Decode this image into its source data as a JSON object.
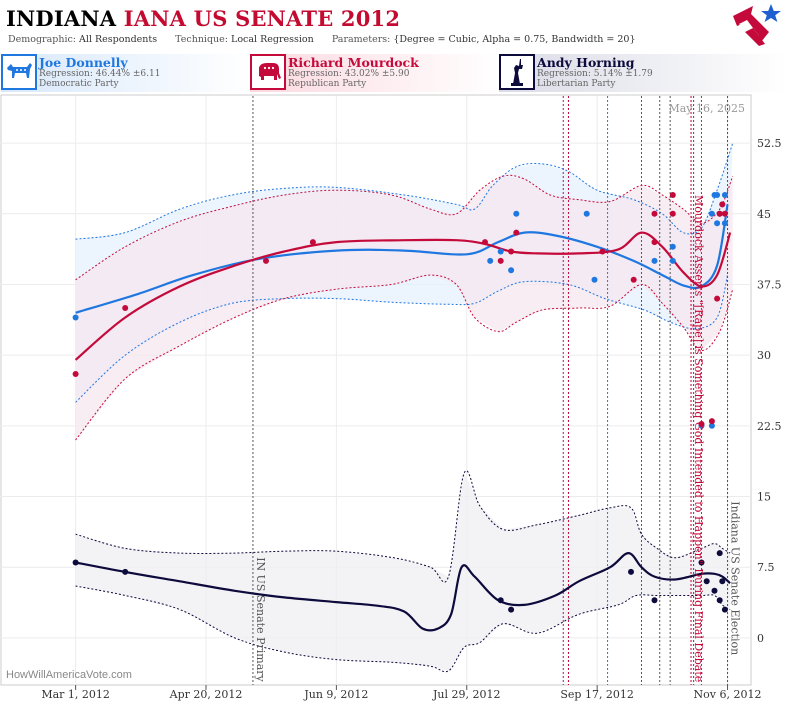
{
  "header": {
    "title_state": "INDIANA",
    "title_rest": "IANA US SENATE 2012",
    "demographic_label": "Demographic:",
    "demographic_value": "All Respondents",
    "technique_label": "Technique:",
    "technique_value": "Local Regression",
    "parameters_label": "Parameters:",
    "parameters_value": "{Degree = Cubic, Alpha = 0.75, Bandwidth = 20}"
  },
  "candidates": [
    {
      "name": "Joe Donnelly",
      "regression": "Regression: 46.44% ±6.11",
      "party": "Democratic Party",
      "color": "#1f77e0",
      "icon": "donkey-icon"
    },
    {
      "name": "Richard Mourdock",
      "regression": "Regression: 43.02% ±5.90",
      "party": "Republican Party",
      "color": "#c40a3a",
      "icon": "elephant-icon"
    },
    {
      "name": "Andy Horning",
      "regression": "Regression: 5.14% ±1.79",
      "party": "Libertarian Party",
      "color": "#0d0a3c",
      "icon": "liberty-statue-icon"
    }
  ],
  "chart_data": {
    "type": "scatter",
    "date_stamp": "May 16, 2025",
    "watermark": "HowWillAmericaVote.com",
    "ylim": [
      -5,
      57.5
    ],
    "y_ticks": [
      0,
      7.5,
      15,
      22.5,
      30,
      37.5,
      45,
      52.5
    ],
    "x_range": [
      "2012-02-01",
      "2012-11-15"
    ],
    "x_ticks": [
      {
        "date": "2012-03-01",
        "label": "Mar 1, 2012"
      },
      {
        "date": "2012-04-20",
        "label": "Apr 20, 2012"
      },
      {
        "date": "2012-06-09",
        "label": "Jun 9, 2012"
      },
      {
        "date": "2012-07-29",
        "label": "Jul 29, 2012"
      },
      {
        "date": "2012-09-17",
        "label": "Sep 17, 2012"
      },
      {
        "date": "2012-11-06",
        "label": "Nov 6, 2012"
      }
    ],
    "annotations": [
      {
        "date": "2012-05-08",
        "label": "IN US Senate Primary",
        "color": "#555555"
      },
      {
        "date": "2012-10-23",
        "label": "Mourdock Asserts \"[Rape] is Something God Intended to Happen\" During Final Debate",
        "color": "#c40a3a"
      },
      {
        "date": "2012-11-06",
        "label": "Indiana US Senate Election",
        "color": "#555555"
      }
    ],
    "event_lines": [
      {
        "date": "2012-09-04",
        "color": "#8a1a8a"
      },
      {
        "date": "2012-09-06",
        "color": "#c40a3a"
      },
      {
        "date": "2012-09-21",
        "color": "#1f77e0"
      },
      {
        "date": "2012-10-04",
        "color": "#555555"
      },
      {
        "date": "2012-10-11",
        "color": "#555555"
      },
      {
        "date": "2012-10-15",
        "color": "#555555"
      },
      {
        "date": "2012-10-23",
        "color": "#c40a3a"
      },
      {
        "date": "2012-10-24",
        "color": "#8a1a8a"
      },
      {
        "date": "2012-10-27",
        "color": "#555555"
      },
      {
        "date": "2012-11-06",
        "color": "#555555"
      }
    ],
    "series": [
      {
        "name": "Joe Donnelly",
        "color": "#1f77e0",
        "fill": "#e6f0fc",
        "line": [
          [
            "2012-03-01",
            34.5
          ],
          [
            "2012-03-25",
            36.5
          ],
          [
            "2012-04-15",
            38.5
          ],
          [
            "2012-05-10",
            40.2
          ],
          [
            "2012-06-09",
            41.1
          ],
          [
            "2012-07-05",
            41.1
          ],
          [
            "2012-07-29",
            40.7
          ],
          [
            "2012-08-10",
            42.0
          ],
          [
            "2012-08-20",
            43.0
          ],
          [
            "2012-09-01",
            42.7
          ],
          [
            "2012-09-17",
            41.5
          ],
          [
            "2012-10-01",
            40.0
          ],
          [
            "2012-10-12",
            38.5
          ],
          [
            "2012-10-20",
            37.4
          ],
          [
            "2012-10-27",
            37.3
          ],
          [
            "2012-11-02",
            39.5
          ],
          [
            "2012-11-06",
            46.0
          ]
        ],
        "upper": [
          [
            "2012-03-01",
            42.3
          ],
          [
            "2012-03-20",
            43.0
          ],
          [
            "2012-04-10",
            45.5
          ],
          [
            "2012-04-30",
            47.0
          ],
          [
            "2012-05-20",
            47.7
          ],
          [
            "2012-06-09",
            47.8
          ],
          [
            "2012-07-05",
            47.0
          ],
          [
            "2012-07-25",
            46.0
          ],
          [
            "2012-08-01",
            45.5
          ],
          [
            "2012-08-08",
            48.0
          ],
          [
            "2012-08-17",
            50.0
          ],
          [
            "2012-08-27",
            50.3
          ],
          [
            "2012-09-06",
            49.5
          ],
          [
            "2012-09-17",
            47.5
          ],
          [
            "2012-10-01",
            46.5
          ],
          [
            "2012-10-12",
            45.0
          ],
          [
            "2012-10-20",
            43.0
          ],
          [
            "2012-10-27",
            43.5
          ],
          [
            "2012-11-02",
            47.5
          ],
          [
            "2012-11-08",
            52.5
          ]
        ],
        "lower": [
          [
            "2012-03-01",
            25.0
          ],
          [
            "2012-03-20",
            30.0
          ],
          [
            "2012-04-10",
            33.5
          ],
          [
            "2012-04-30",
            35.5
          ],
          [
            "2012-05-20",
            36.0
          ],
          [
            "2012-06-09",
            36.0
          ],
          [
            "2012-07-01",
            35.6
          ],
          [
            "2012-07-22",
            35.4
          ],
          [
            "2012-08-01",
            35.5
          ],
          [
            "2012-08-10",
            36.8
          ],
          [
            "2012-08-20",
            37.8
          ],
          [
            "2012-09-06",
            37.5
          ],
          [
            "2012-09-20",
            36.0
          ],
          [
            "2012-10-05",
            34.8
          ],
          [
            "2012-10-15",
            33.5
          ],
          [
            "2012-10-25",
            32.8
          ],
          [
            "2012-11-02",
            34.0
          ],
          [
            "2012-11-06",
            38.5
          ]
        ],
        "points": [
          [
            "2012-03-01",
            34.0
          ],
          [
            "2012-08-07",
            40.0
          ],
          [
            "2012-08-11",
            41.0
          ],
          [
            "2012-08-15",
            39.0
          ],
          [
            "2012-08-17",
            45.0
          ],
          [
            "2012-09-13",
            45.0
          ],
          [
            "2012-09-16",
            38.0
          ],
          [
            "2012-10-09",
            40.0
          ],
          [
            "2012-10-16",
            41.5
          ],
          [
            "2012-10-16",
            40.0
          ],
          [
            "2012-10-27",
            22.5
          ],
          [
            "2012-10-31",
            45.0
          ],
          [
            "2012-11-01",
            47.0
          ],
          [
            "2012-11-02",
            47.0
          ],
          [
            "2012-11-02",
            44.0
          ],
          [
            "2012-11-03",
            45.0
          ],
          [
            "2012-11-04",
            46.0
          ],
          [
            "2012-11-05",
            44.0
          ],
          [
            "2012-11-05",
            47.0
          ],
          [
            "2012-10-31",
            22.5
          ]
        ]
      },
      {
        "name": "Richard Mourdock",
        "color": "#c40a3a",
        "fill": "#f5e7ef",
        "line": [
          [
            "2012-03-01",
            29.5
          ],
          [
            "2012-03-20",
            34.0
          ],
          [
            "2012-04-10",
            37.3
          ],
          [
            "2012-05-01",
            39.5
          ],
          [
            "2012-05-20",
            41.0
          ],
          [
            "2012-06-09",
            42.0
          ],
          [
            "2012-07-05",
            42.2
          ],
          [
            "2012-07-25",
            42.2
          ],
          [
            "2012-08-05",
            41.8
          ],
          [
            "2012-08-15",
            41.0
          ],
          [
            "2012-08-25",
            40.8
          ],
          [
            "2012-09-10",
            40.8
          ],
          [
            "2012-09-25",
            41.2
          ],
          [
            "2012-10-04",
            43.0
          ],
          [
            "2012-10-12",
            41.5
          ],
          [
            "2012-10-20",
            38.8
          ],
          [
            "2012-10-27",
            37.3
          ],
          [
            "2012-11-02",
            38.5
          ],
          [
            "2012-11-07",
            43.0
          ]
        ],
        "upper": [
          [
            "2012-03-01",
            38.0
          ],
          [
            "2012-03-20",
            41.5
          ],
          [
            "2012-04-10",
            44.2
          ],
          [
            "2012-04-30",
            45.8
          ],
          [
            "2012-05-20",
            47.0
          ],
          [
            "2012-06-09",
            47.5
          ],
          [
            "2012-06-30",
            47.0
          ],
          [
            "2012-07-15",
            45.5
          ],
          [
            "2012-07-25",
            45.0
          ],
          [
            "2012-08-03",
            47.5
          ],
          [
            "2012-08-12",
            49.0
          ],
          [
            "2012-08-20",
            48.7
          ],
          [
            "2012-08-30",
            47.0
          ],
          [
            "2012-09-10",
            46.5
          ],
          [
            "2012-09-22",
            46.3
          ],
          [
            "2012-10-04",
            48.0
          ],
          [
            "2012-10-12",
            47.0
          ],
          [
            "2012-10-20",
            45.5
          ],
          [
            "2012-10-27",
            44.0
          ],
          [
            "2012-11-03",
            45.5
          ],
          [
            "2012-11-08",
            49.0
          ]
        ],
        "lower": [
          [
            "2012-03-01",
            21.0
          ],
          [
            "2012-03-20",
            27.5
          ],
          [
            "2012-04-10",
            31.0
          ],
          [
            "2012-05-01",
            34.0
          ],
          [
            "2012-05-20",
            36.0
          ],
          [
            "2012-06-09",
            37.0
          ],
          [
            "2012-06-30",
            37.5
          ],
          [
            "2012-07-15",
            38.5
          ],
          [
            "2012-07-25",
            37.5
          ],
          [
            "2012-08-01",
            34.0
          ],
          [
            "2012-08-10",
            32.5
          ],
          [
            "2012-08-17",
            33.5
          ],
          [
            "2012-08-27",
            34.8
          ],
          [
            "2012-09-10",
            35.0
          ],
          [
            "2012-09-22",
            35.2
          ],
          [
            "2012-10-04",
            37.5
          ],
          [
            "2012-10-12",
            35.5
          ],
          [
            "2012-10-20",
            33.0
          ],
          [
            "2012-10-27",
            30.5
          ],
          [
            "2012-11-03",
            32.5
          ],
          [
            "2012-11-08",
            37.0
          ]
        ],
        "points": [
          [
            "2012-03-01",
            28.0
          ],
          [
            "2012-03-20",
            35.0
          ],
          [
            "2012-05-13",
            40.0
          ],
          [
            "2012-05-31",
            42.0
          ],
          [
            "2012-08-05",
            42.0
          ],
          [
            "2012-08-11",
            40.0
          ],
          [
            "2012-08-15",
            41.0
          ],
          [
            "2012-08-17",
            43.0
          ],
          [
            "2012-09-19",
            41.0
          ],
          [
            "2012-10-01",
            38.0
          ],
          [
            "2012-10-09",
            45.0
          ],
          [
            "2012-10-16",
            45.0
          ],
          [
            "2012-10-16",
            47.0
          ],
          [
            "2012-10-09",
            42.0
          ],
          [
            "2012-10-27",
            22.7
          ],
          [
            "2012-10-31",
            23.0
          ],
          [
            "2012-11-02",
            36.0
          ],
          [
            "2012-11-03",
            45.0
          ],
          [
            "2012-11-04",
            46.0
          ],
          [
            "2012-11-05",
            45.0
          ]
        ]
      },
      {
        "name": "Andy Horning",
        "color": "#0d0a3c",
        "fill": "#efeff3",
        "line": [
          [
            "2012-03-01",
            8.0
          ],
          [
            "2012-03-20",
            7.0
          ],
          [
            "2012-04-10",
            6.0
          ],
          [
            "2012-05-01",
            5.0
          ],
          [
            "2012-05-20",
            4.3
          ],
          [
            "2012-06-09",
            3.8
          ],
          [
            "2012-06-25",
            3.4
          ],
          [
            "2012-07-05",
            2.8
          ],
          [
            "2012-07-12",
            1.0
          ],
          [
            "2012-07-18",
            1.0
          ],
          [
            "2012-07-23",
            2.5
          ],
          [
            "2012-07-27",
            7.5
          ],
          [
            "2012-08-01",
            6.5
          ],
          [
            "2012-08-10",
            4.0
          ],
          [
            "2012-08-20",
            3.5
          ],
          [
            "2012-09-01",
            4.5
          ],
          [
            "2012-09-10",
            6.0
          ],
          [
            "2012-09-22",
            7.5
          ],
          [
            "2012-09-29",
            9.0
          ],
          [
            "2012-10-04",
            7.5
          ],
          [
            "2012-10-09",
            6.5
          ],
          [
            "2012-10-17",
            6.2
          ],
          [
            "2012-10-27",
            6.8
          ],
          [
            "2012-11-01",
            6.8
          ],
          [
            "2012-11-04",
            6.5
          ],
          [
            "2012-11-07",
            5.8
          ]
        ],
        "upper": [
          [
            "2012-03-01",
            11.0
          ],
          [
            "2012-03-20",
            9.5
          ],
          [
            "2012-04-10",
            9.0
          ],
          [
            "2012-05-01",
            9.0
          ],
          [
            "2012-05-20",
            9.2
          ],
          [
            "2012-06-09",
            9.2
          ],
          [
            "2012-07-01",
            8.5
          ],
          [
            "2012-07-15",
            7.5
          ],
          [
            "2012-07-22",
            6.5
          ],
          [
            "2012-07-28",
            17.5
          ],
          [
            "2012-08-03",
            14.0
          ],
          [
            "2012-08-12",
            11.5
          ],
          [
            "2012-08-25",
            12.0
          ],
          [
            "2012-09-10",
            13.0
          ],
          [
            "2012-09-22",
            13.8
          ],
          [
            "2012-09-30",
            13.8
          ],
          [
            "2012-10-04",
            11.0
          ],
          [
            "2012-10-10",
            9.5
          ],
          [
            "2012-10-17",
            8.5
          ],
          [
            "2012-10-27",
            9.5
          ],
          [
            "2012-11-01",
            10.0
          ],
          [
            "2012-11-04",
            9.5
          ],
          [
            "2012-11-07",
            9.0
          ]
        ],
        "lower": [
          [
            "2012-03-01",
            5.5
          ],
          [
            "2012-03-20",
            4.5
          ],
          [
            "2012-04-10",
            3.0
          ],
          [
            "2012-05-01",
            0.0
          ],
          [
            "2012-05-20",
            -1.5
          ],
          [
            "2012-06-09",
            -2.3
          ],
          [
            "2012-07-01",
            -2.6
          ],
          [
            "2012-07-15",
            -3.0
          ],
          [
            "2012-07-22",
            -3.5
          ],
          [
            "2012-07-28",
            -1.0
          ],
          [
            "2012-08-03",
            -0.5
          ],
          [
            "2012-08-12",
            1.5
          ],
          [
            "2012-08-25",
            0.5
          ],
          [
            "2012-09-10",
            2.5
          ],
          [
            "2012-09-25",
            3.5
          ],
          [
            "2012-10-02",
            4.5
          ],
          [
            "2012-10-10",
            4.5
          ],
          [
            "2012-10-18",
            4.5
          ],
          [
            "2012-10-27",
            4.5
          ],
          [
            "2012-11-01",
            4.5
          ],
          [
            "2012-11-04",
            3.5
          ],
          [
            "2012-11-07",
            3.0
          ]
        ],
        "points": [
          [
            "2012-03-01",
            8.0
          ],
          [
            "2012-03-20",
            7.0
          ],
          [
            "2012-08-11",
            4.0
          ],
          [
            "2012-08-15",
            3.0
          ],
          [
            "2012-09-30",
            7.0
          ],
          [
            "2012-10-09",
            4.0
          ],
          [
            "2012-10-27",
            8.0
          ],
          [
            "2012-10-29",
            6.0
          ],
          [
            "2012-11-01",
            5.0
          ],
          [
            "2012-11-03",
            9.0
          ],
          [
            "2012-11-03",
            4.0
          ],
          [
            "2012-11-04",
            6.0
          ],
          [
            "2012-11-05",
            3.0
          ]
        ]
      }
    ]
  }
}
